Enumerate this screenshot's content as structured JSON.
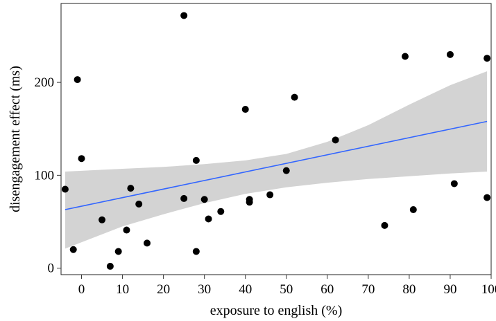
{
  "chart_data": {
    "type": "scatter",
    "title": "",
    "xlabel": "exposure to english (%)",
    "ylabel": "disengagement effect (ms)",
    "xlim": [
      -5,
      100
    ],
    "ylim": [
      -7,
      285
    ],
    "xticks": [
      0,
      10,
      20,
      30,
      40,
      50,
      60,
      70,
      80,
      90,
      100
    ],
    "yticks": [
      0,
      100,
      200
    ],
    "grid": false,
    "legend": "none",
    "colors": {
      "points": "#000000",
      "fit_line": "#3366FF",
      "confidence_band": "#D3D3D3"
    },
    "points": [
      {
        "x": -4,
        "y": 85
      },
      {
        "x": -2,
        "y": 20
      },
      {
        "x": -1,
        "y": 203
      },
      {
        "x": 0,
        "y": 118
      },
      {
        "x": 5,
        "y": 52
      },
      {
        "x": 7,
        "y": 2
      },
      {
        "x": 9,
        "y": 18
      },
      {
        "x": 11,
        "y": 41
      },
      {
        "x": 12,
        "y": 86
      },
      {
        "x": 14,
        "y": 69
      },
      {
        "x": 16,
        "y": 27
      },
      {
        "x": 25,
        "y": 75
      },
      {
        "x": 25,
        "y": 272
      },
      {
        "x": 28,
        "y": 116
      },
      {
        "x": 28,
        "y": 18
      },
      {
        "x": 30,
        "y": 74
      },
      {
        "x": 31,
        "y": 53
      },
      {
        "x": 34,
        "y": 61
      },
      {
        "x": 40,
        "y": 171
      },
      {
        "x": 41,
        "y": 74
      },
      {
        "x": 41,
        "y": 71
      },
      {
        "x": 46,
        "y": 79
      },
      {
        "x": 50,
        "y": 105
      },
      {
        "x": 52,
        "y": 184
      },
      {
        "x": 62,
        "y": 138
      },
      {
        "x": 74,
        "y": 46
      },
      {
        "x": 79,
        "y": 228
      },
      {
        "x": 81,
        "y": 63
      },
      {
        "x": 90,
        "y": 230
      },
      {
        "x": 91,
        "y": 91
      },
      {
        "x": 99,
        "y": 226
      },
      {
        "x": 99,
        "y": 76
      }
    ],
    "fit_line": {
      "x": [
        -4,
        99
      ],
      "y": [
        63,
        158
      ]
    },
    "confidence_band": {
      "x": [
        -4,
        10,
        20,
        30,
        40,
        50,
        60,
        70,
        80,
        90,
        99
      ],
      "upper": [
        104,
        107,
        109,
        112,
        116,
        123,
        136,
        154,
        176,
        197,
        212
      ],
      "lower": [
        21,
        45,
        58,
        70,
        80,
        87,
        92,
        96,
        99,
        102,
        104
      ]
    }
  }
}
